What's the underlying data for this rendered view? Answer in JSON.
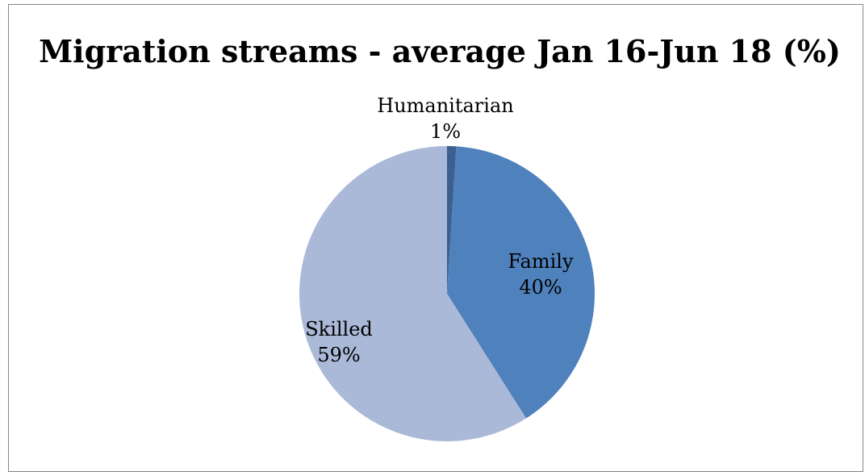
{
  "chart_data": {
    "type": "pie",
    "title": "Migration streams - average Jan 16-Jun 18 (%)",
    "slices": [
      {
        "name": "Humanitarian",
        "value": 1,
        "label": "1%",
        "color": "#3b5f8f"
      },
      {
        "name": "Family",
        "value": 40,
        "label": "40%",
        "color": "#4f81bd"
      },
      {
        "name": "Skilled",
        "value": 59,
        "label": "59%",
        "color": "#aab9d8"
      }
    ],
    "legend": "none",
    "start_angle": "12 o'clock, clockwise"
  }
}
